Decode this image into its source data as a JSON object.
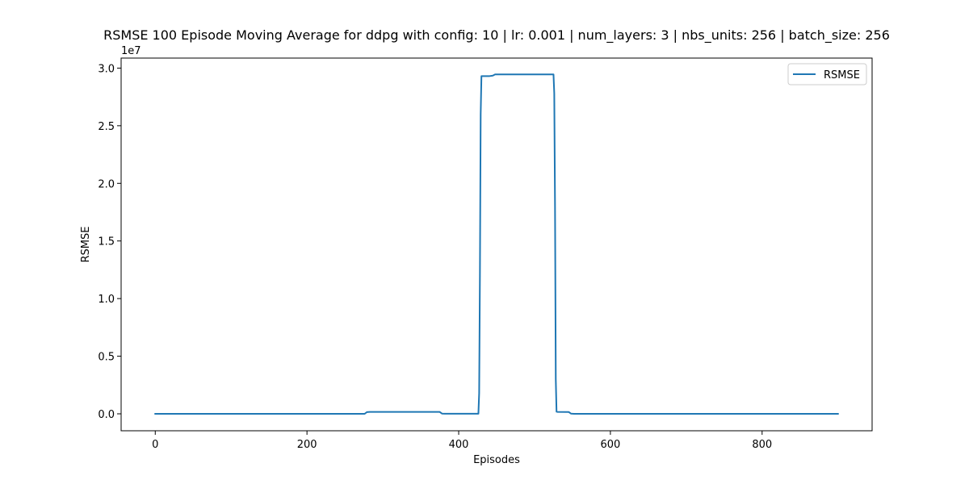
{
  "chart_data": {
    "type": "line",
    "title": "RSMSE 100 Episode Moving Average for ddpg with config: 10 | lr: 0.001 | num_layers: 3 | nbs_units: 256 | batch_size: 256",
    "xlabel": "Episodes",
    "ylabel": "RSMSE",
    "y_scale_note": "1e7",
    "xlim": [
      -45,
      945
    ],
    "ylim": [
      -1470000,
      30870000
    ],
    "x_ticks": [
      0,
      200,
      400,
      600,
      800
    ],
    "x_tick_labels": [
      "0",
      "200",
      "400",
      "600",
      "800"
    ],
    "y_ticks": [
      0,
      5000000,
      10000000,
      15000000,
      20000000,
      25000000,
      30000000
    ],
    "y_tick_labels": [
      "0.0",
      "0.5",
      "1.0",
      "1.5",
      "2.0",
      "2.5",
      "3.0"
    ],
    "grid": false,
    "legend": {
      "position": "upper-right",
      "entries": [
        "RSMSE"
      ]
    },
    "colors": {
      "series": "#1f77b4",
      "axes": "#000000"
    },
    "series": [
      {
        "name": "RSMSE",
        "x": [
          0,
          100,
          200,
          276,
          279,
          283,
          300,
          340,
          375,
          378,
          382,
          400,
          426,
          427,
          428,
          429,
          430,
          440,
          445,
          448,
          470,
          500,
          525,
          526,
          527,
          528,
          529,
          530,
          545,
          548,
          552,
          600,
          700,
          800,
          900
        ],
        "y": [
          0,
          0,
          0,
          0,
          150000,
          170000,
          170000,
          165000,
          165000,
          20000,
          10000,
          10000,
          10000,
          1800000,
          12000000,
          26000000,
          29300000,
          29300000,
          29350000,
          29450000,
          29450000,
          29450000,
          29450000,
          27800000,
          18000000,
          3000000,
          180000,
          170000,
          160000,
          20000,
          0,
          0,
          0,
          0,
          0
        ]
      }
    ]
  }
}
